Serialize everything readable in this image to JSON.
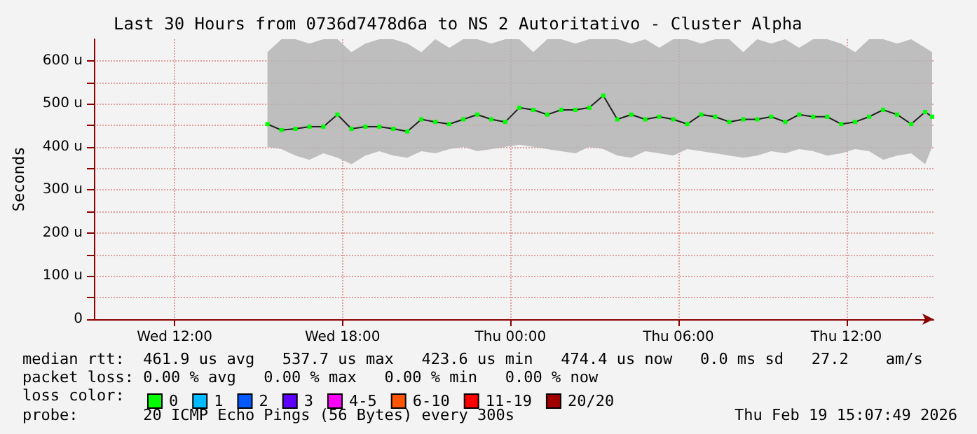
{
  "chart_data": {
    "type": "line",
    "title": "Last 30 Hours from 0736d7478d6a to NS 2 Autoritativo - Cluster Alpha",
    "ylabel": "Seconds",
    "x": [
      "2026-02-18T15:19",
      "2026-02-18T15:49",
      "2026-02-18T16:19",
      "2026-02-18T16:49",
      "2026-02-18T17:19",
      "2026-02-18T17:49",
      "2026-02-18T18:19",
      "2026-02-18T18:49",
      "2026-02-18T19:19",
      "2026-02-18T19:49",
      "2026-02-18T20:19",
      "2026-02-18T20:49",
      "2026-02-18T21:19",
      "2026-02-18T21:49",
      "2026-02-18T22:19",
      "2026-02-18T22:49",
      "2026-02-18T23:19",
      "2026-02-18T23:49",
      "2026-02-19T00:19",
      "2026-02-19T00:49",
      "2026-02-19T01:19",
      "2026-02-19T01:49",
      "2026-02-19T02:19",
      "2026-02-19T02:49",
      "2026-02-19T03:19",
      "2026-02-19T03:49",
      "2026-02-19T04:19",
      "2026-02-19T04:49",
      "2026-02-19T05:19",
      "2026-02-19T05:49",
      "2026-02-19T06:19",
      "2026-02-19T06:49",
      "2026-02-19T07:19",
      "2026-02-19T07:49",
      "2026-02-19T08:19",
      "2026-02-19T08:49",
      "2026-02-19T09:19",
      "2026-02-19T09:49",
      "2026-02-19T10:19",
      "2026-02-19T10:49",
      "2026-02-19T11:19",
      "2026-02-19T11:49",
      "2026-02-19T12:19",
      "2026-02-19T12:49",
      "2026-02-19T13:19",
      "2026-02-19T13:49",
      "2026-02-19T14:19",
      "2026-02-19T14:49",
      "2026-02-19T15:04"
    ],
    "series": [
      {
        "name": "0",
        "color": "#00ff00",
        "values": [
          453,
          439,
          442,
          447,
          447,
          475,
          442,
          447,
          447,
          442,
          436,
          464,
          458,
          453,
          464,
          475,
          464,
          458,
          491,
          486,
          475,
          486,
          486,
          491,
          519,
          464,
          475,
          464,
          470,
          464,
          453,
          475,
          470,
          458,
          464,
          464,
          470,
          458,
          475,
          470,
          470,
          453,
          458,
          470,
          486,
          475,
          453,
          481,
          470
        ],
        "lower": [
          400,
          395,
          380,
          370,
          385,
          375,
          360,
          380,
          390,
          380,
          375,
          390,
          385,
          395,
          400,
          390,
          395,
          400,
          405,
          400,
          395,
          390,
          385,
          400,
          395,
          380,
          375,
          390,
          385,
          380,
          395,
          390,
          385,
          380,
          375,
          380,
          390,
          385,
          395,
          390,
          380,
          385,
          395,
          390,
          370,
          380,
          385,
          360,
          400
        ],
        "upper": [
          620,
          650,
          650,
          640,
          650,
          650,
          620,
          640,
          650,
          650,
          640,
          620,
          650,
          630,
          650,
          650,
          640,
          650,
          650,
          620,
          650,
          650,
          640,
          650,
          650,
          650,
          640,
          650,
          630,
          650,
          650,
          640,
          650,
          650,
          620,
          650,
          640,
          650,
          630,
          650,
          650,
          640,
          620,
          650,
          650,
          640,
          650,
          630,
          620
        ]
      },
      {
        "name": "1",
        "color": "#00bbff",
        "values": [
          null,
          null,
          null,
          null,
          null,
          null,
          null,
          null,
          null,
          null,
          null,
          null,
          null,
          null,
          null,
          null,
          null,
          null,
          null,
          null,
          null,
          null,
          null,
          null,
          null,
          null,
          null,
          null,
          null,
          null,
          null,
          null,
          null,
          null,
          null,
          null,
          null,
          null,
          null,
          null,
          null,
          null,
          null,
          null,
          null,
          null,
          null,
          null,
          null
        ]
      },
      {
        "name": "2",
        "color": "#0059ff",
        "values": [
          null,
          null,
          null,
          null,
          null,
          null,
          null,
          null,
          null,
          null,
          null,
          null,
          null,
          null,
          null,
          null,
          null,
          null,
          null,
          null,
          null,
          null,
          null,
          null,
          null,
          null,
          null,
          null,
          null,
          null,
          null,
          null,
          null,
          null,
          null,
          null,
          null,
          null,
          null,
          null,
          null,
          null,
          null,
          null,
          null,
          null,
          null,
          null,
          null
        ]
      },
      {
        "name": "3",
        "color": "#5e00ff",
        "values": [
          null,
          null,
          null,
          null,
          null,
          null,
          null,
          null,
          null,
          null,
          null,
          null,
          null,
          null,
          null,
          null,
          null,
          null,
          null,
          null,
          null,
          null,
          null,
          null,
          null,
          null,
          null,
          null,
          null,
          null,
          null,
          null,
          null,
          null,
          null,
          null,
          null,
          null,
          null,
          null,
          null,
          null,
          null,
          null,
          null,
          null,
          null,
          null,
          null
        ]
      },
      {
        "name": "4-5",
        "color": "#ff00ff",
        "values": [
          null,
          null,
          null,
          null,
          null,
          null,
          null,
          null,
          null,
          null,
          null,
          null,
          null,
          null,
          null,
          null,
          null,
          null,
          null,
          null,
          null,
          null,
          null,
          null,
          null,
          null,
          null,
          null,
          null,
          null,
          null,
          null,
          null,
          null,
          null,
          null,
          null,
          null,
          null,
          null,
          null,
          null,
          null,
          null,
          null,
          null,
          null,
          null,
          null
        ]
      },
      {
        "name": "6-10",
        "color": "#ff5500",
        "values": [
          null,
          null,
          null,
          null,
          null,
          null,
          null,
          null,
          null,
          null,
          null,
          null,
          null,
          null,
          null,
          null,
          null,
          null,
          null,
          null,
          null,
          null,
          null,
          null,
          null,
          null,
          null,
          null,
          null,
          null,
          null,
          null,
          null,
          null,
          null,
          null,
          null,
          null,
          null,
          null,
          null,
          null,
          null,
          null,
          null,
          null,
          null,
          null,
          null
        ]
      },
      {
        "name": "11-19",
        "color": "#ff0000",
        "values": [
          null,
          null,
          null,
          null,
          null,
          null,
          null,
          null,
          null,
          null,
          null,
          null,
          null,
          null,
          null,
          null,
          null,
          null,
          null,
          null,
          null,
          null,
          null,
          null,
          null,
          null,
          null,
          null,
          null,
          null,
          null,
          null,
          null,
          null,
          null,
          null,
          null,
          null,
          null,
          null,
          null,
          null,
          null,
          null,
          null,
          null,
          null,
          null,
          null
        ]
      },
      {
        "name": "20/20",
        "color": "#a10000",
        "values": [
          null,
          null,
          null,
          null,
          null,
          null,
          null,
          null,
          null,
          null,
          null,
          null,
          null,
          null,
          null,
          null,
          null,
          null,
          null,
          null,
          null,
          null,
          null,
          null,
          null,
          null,
          null,
          null,
          null,
          null,
          null,
          null,
          null,
          null,
          null,
          null,
          null,
          null,
          null,
          null,
          null,
          null,
          null,
          null,
          null,
          null,
          null,
          null,
          null
        ]
      }
    ],
    "xlim": [
      "2026-02-18T09:07",
      "2026-02-19T15:07"
    ],
    "xticks": [
      {
        "value": "2026-02-18T12:00",
        "label": "Wed 12:00"
      },
      {
        "value": "2026-02-18T18:00",
        "label": "Wed 18:00"
      },
      {
        "value": "2026-02-19T00:00",
        "label": "Thu 00:00"
      },
      {
        "value": "2026-02-19T06:00",
        "label": "Thu 06:00"
      },
      {
        "value": "2026-02-19T12:00",
        "label": "Thu 12:00"
      }
    ],
    "ylim": [
      0,
      650
    ],
    "yticks": [
      0,
      {
        "value": 50,
        "label": null
      },
      {
        "value": 100,
        "label": "100 u"
      },
      {
        "value": 150,
        "label": null
      },
      {
        "value": 200,
        "label": "200 u"
      },
      {
        "value": 250,
        "label": null
      },
      {
        "value": 300,
        "label": "300 u"
      },
      {
        "value": 350,
        "label": null
      },
      {
        "value": 400,
        "label": "400 u"
      },
      {
        "value": 450,
        "label": null
      },
      {
        "value": 500,
        "label": "500 u"
      },
      {
        "value": 550,
        "label": null
      },
      {
        "value": 600,
        "label": "600 u"
      }
    ],
    "grid": true,
    "legend": "bottom",
    "legend_title": "loss color:",
    "marker": "square",
    "line_style": "solid",
    "annotations": [
      "median rtt:  461.9 us avg   537.7 us max   423.6 us min   474.4 us now   0.0 ms sd   27.2    am/s",
      "packet loss: 0.00 % avg   0.00 % max   0.00 % min   0.00 % now",
      "probe:       20 ICMP Echo Pings (56 Bytes) every 300s",
      "Thu Feb 19 15:07:49 2026"
    ]
  }
}
